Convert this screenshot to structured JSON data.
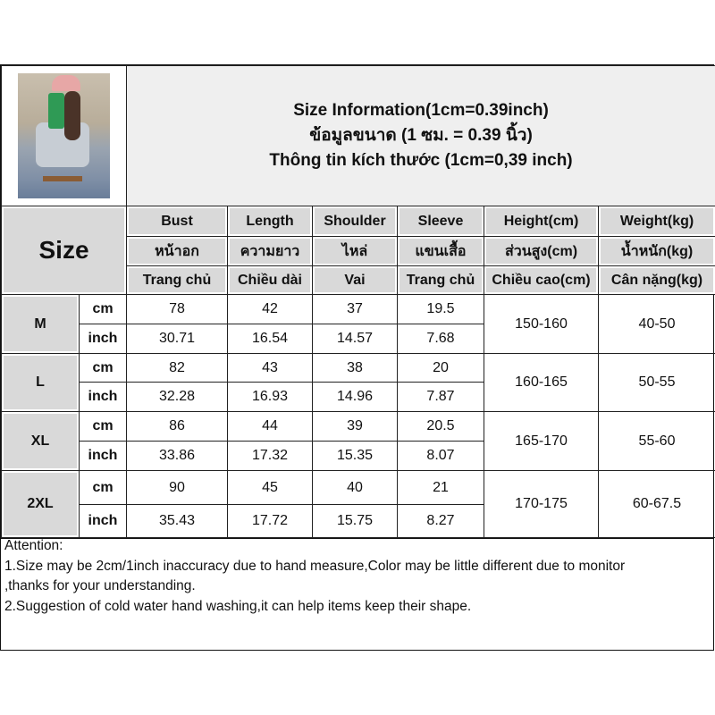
{
  "title": [
    "Size Information(1cm=0.39inch)",
    "ข้อมูลขนาด (1 ซม. = 0.39 นิ้ว)",
    "Thông tin kích thước (1cm=0,39 inch)"
  ],
  "size_label": "Size",
  "headers": [
    [
      "Bust",
      "หน้าอก",
      "Trang chủ"
    ],
    [
      "Length",
      "ความยาว",
      "Chiều dài"
    ],
    [
      "Shoulder",
      "ไหล่",
      "Vai"
    ],
    [
      "Sleeve",
      "แขนเสื้อ",
      "Trang chủ"
    ],
    [
      "Height(cm)",
      "ส่วนสูง(cm)",
      "Chiều cao(cm)"
    ],
    [
      "Weight(kg)",
      "น้ำหนัก(kg)",
      "Cân nặng(kg)"
    ]
  ],
  "rows": [
    {
      "size": "M",
      "cm": [
        "cm",
        "78",
        "42",
        "37",
        "19.5"
      ],
      "inch": [
        "inch",
        "30.71",
        "16.54",
        "14.57",
        "7.68"
      ],
      "height": "150-160",
      "weight": "40-50"
    },
    {
      "size": "L",
      "cm": [
        "cm",
        "82",
        "43",
        "38",
        "20"
      ],
      "inch": [
        "inch",
        "32.28",
        "16.93",
        "14.96",
        "7.87"
      ],
      "height": "160-165",
      "weight": "50-55"
    },
    {
      "size": "XL",
      "cm": [
        "cm",
        "86",
        "44",
        "39",
        "20.5"
      ],
      "inch": [
        "inch",
        "33.86",
        "17.32",
        "15.35",
        "8.07"
      ],
      "height": "165-170",
      "weight": "55-60"
    },
    {
      "size": "2XL",
      "cm": [
        "cm",
        "90",
        "45",
        "40",
        "21"
      ],
      "inch": [
        "inch",
        "35.43",
        "17.72",
        "15.75",
        "8.27"
      ],
      "height": "170-175",
      "weight": "60-67.5"
    }
  ],
  "attention": [
    "Attention:",
    "1.Size may be 2cm/1inch inaccuracy due to hand measure,Color may be little different due to monitor",
    ",thanks for your understanding.",
    "2.Suggestion of cold water hand washing,it can help items keep their shape."
  ]
}
